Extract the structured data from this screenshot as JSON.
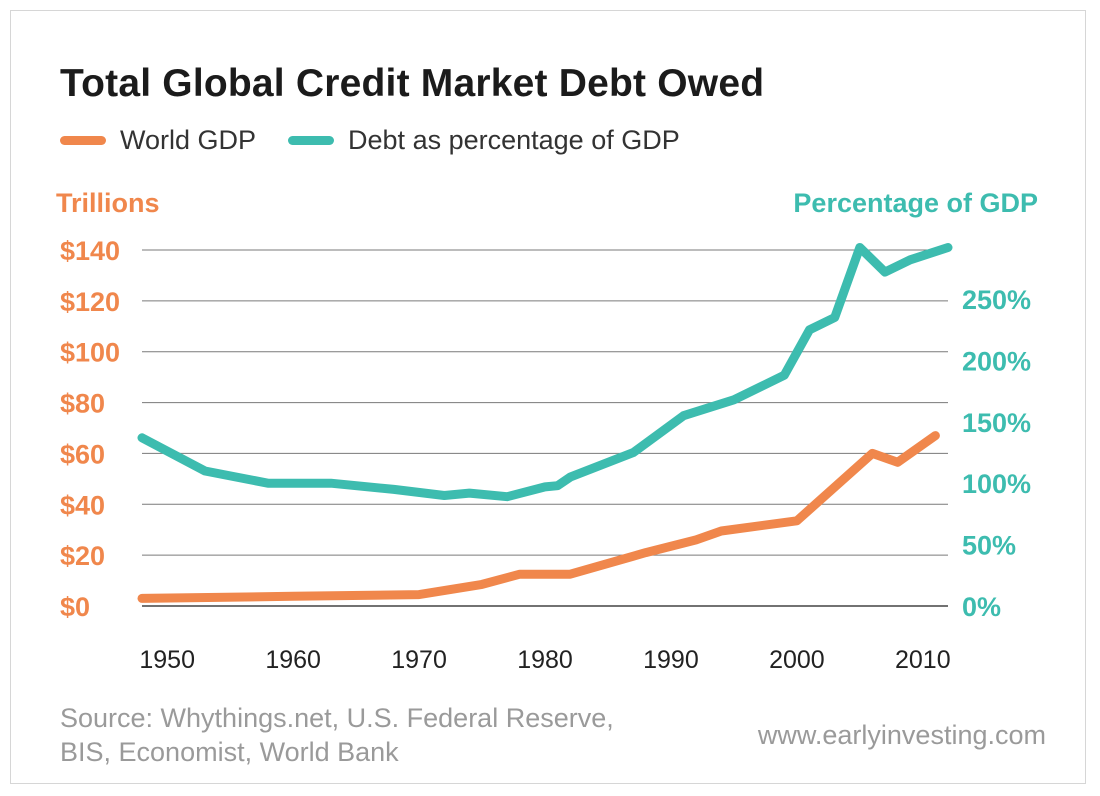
{
  "chart_data": {
    "type": "line",
    "title": "Total Global Credit Market Debt Owed",
    "legend_placement": "top-left",
    "grid": "horizontal",
    "x_ticks": [
      "1950",
      "1960",
      "1970",
      "1980",
      "1990",
      "2000",
      "2010"
    ],
    "xlim": [
      1948,
      2012
    ],
    "left_axis": {
      "label": "Trillions",
      "ylim": [
        0,
        140
      ],
      "ticks": [
        0,
        20,
        40,
        60,
        80,
        100,
        120,
        140
      ],
      "tick_labels": [
        "$0",
        "$20",
        "$40",
        "$60",
        "$80",
        "$100",
        "$120",
        "$140"
      ]
    },
    "right_axis": {
      "label": "Percentage of GDP",
      "ylim": [
        0,
        290
      ],
      "ticks": [
        0,
        50,
        100,
        150,
        200,
        250
      ],
      "tick_labels": [
        "0%",
        "50%",
        "100%",
        "150%",
        "200%",
        "250%"
      ]
    },
    "series": [
      {
        "name": "World GDP",
        "axis": "left",
        "color": "#f0874c",
        "x": [
          1948,
          1960,
          1970,
          1975,
          1978,
          1982,
          1988,
          1992,
          1994,
          2000,
          2006,
          2008,
          2011
        ],
        "values": [
          3,
          3.8,
          4.5,
          8.5,
          12.5,
          12.5,
          21,
          26,
          29.5,
          33.5,
          60,
          56.5,
          67
        ]
      },
      {
        "name": "Debt as percentage of GDP",
        "axis": "right",
        "color": "#3dbcaf",
        "x": [
          1948,
          1953,
          1958,
          1963,
          1968,
          1972,
          1974,
          1977,
          1980,
          1981,
          1982,
          1987,
          1991,
          1995,
          1999,
          2001,
          2003,
          2005,
          2007,
          2009,
          2012
        ],
        "values": [
          137,
          110,
          100,
          100,
          95,
          90,
          92,
          89,
          97,
          98,
          105,
          125,
          155,
          168,
          188,
          225,
          235,
          292,
          272,
          282,
          292
        ]
      }
    ]
  },
  "legend": {
    "gdp_label": "World GDP",
    "debt_label": "Debt as percentage of GDP"
  },
  "source": {
    "line1": "Source: Whythings.net, U.S. Federal Reserve,",
    "line2": "BIS, Economist, World Bank"
  },
  "website": "www.earlyinvesting.com",
  "colors": {
    "gdp": "#f0874c",
    "debt": "#3dbcaf",
    "title": "#1b1b1b",
    "grid": "#7a7a7a",
    "muted_text": "#9a9a9a"
  }
}
